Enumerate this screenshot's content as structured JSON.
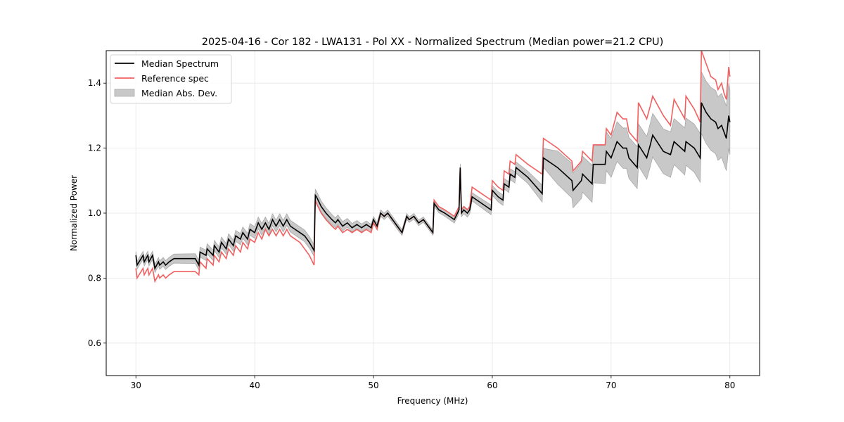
{
  "chart_data": {
    "type": "line",
    "title": "2025-04-16 - Cor 182 - LWA131 - Pol XX - Normalized Spectrum (Median power=21.2 CPU)",
    "xlabel": "Frequency (MHz)",
    "ylabel": "Normalized Power",
    "xlim": [
      27.5,
      82.5
    ],
    "ylim": [
      0.5,
      1.5
    ],
    "xticks": [
      30,
      40,
      50,
      60,
      70,
      80
    ],
    "xtick_labels": [
      "30",
      "40",
      "50",
      "60",
      "70",
      "80"
    ],
    "yticks": [
      0.6,
      0.8,
      1.0,
      1.2,
      1.4
    ],
    "ytick_labels": [
      "0.6",
      "0.8",
      "1.0",
      "1.2",
      "1.4"
    ],
    "grid": true,
    "legend": {
      "placement": "top-left",
      "entries": [
        {
          "label": "Median Spectrum",
          "kind": "line",
          "color": "#000000"
        },
        {
          "label": "Reference spec",
          "kind": "line",
          "color": "#f06060"
        },
        {
          "label": "Median Abs. Dev.",
          "kind": "patch",
          "color": "#c8c8c8"
        }
      ]
    },
    "series": [
      {
        "name": "Median Spectrum",
        "color": "#000000",
        "x": [
          30.0,
          30.1,
          30.6,
          30.7,
          31.0,
          31.1,
          31.4,
          31.6,
          31.9,
          32.0,
          32.3,
          32.5,
          32.8,
          33.2,
          33.5,
          34.0,
          34.5,
          35.0,
          35.3,
          35.4,
          35.9,
          36.0,
          36.5,
          36.6,
          37.0,
          37.2,
          37.6,
          37.8,
          38.2,
          38.4,
          38.8,
          39.0,
          39.4,
          39.6,
          40.0,
          40.3,
          40.6,
          40.9,
          41.2,
          41.5,
          41.8,
          42.1,
          42.4,
          42.7,
          43.0,
          43.4,
          43.8,
          44.2,
          44.6,
          45.0,
          45.1,
          45.2,
          45.6,
          46.0,
          46.5,
          46.8,
          47.0,
          47.4,
          47.8,
          48.2,
          48.6,
          49.0,
          49.4,
          49.8,
          50.0,
          50.3,
          50.6,
          50.9,
          51.2,
          51.6,
          52.0,
          52.4,
          52.8,
          53.0,
          53.4,
          53.8,
          54.2,
          54.6,
          55.0,
          55.1,
          55.5,
          56.0,
          56.4,
          56.8,
          57.2,
          57.3,
          57.4,
          57.6,
          57.9,
          58.1,
          58.3,
          58.7,
          59.1,
          59.5,
          59.9,
          60.0,
          60.5,
          60.9,
          61.0,
          61.4,
          61.5,
          61.9,
          62.0,
          63.0,
          64.2,
          64.3,
          65.5,
          66.7,
          66.8,
          67.5,
          67.6,
          68.4,
          68.5,
          69.5,
          69.6,
          70.0,
          70.5,
          71.0,
          71.3,
          71.5,
          72.2,
          72.3,
          73.0,
          73.3,
          73.5,
          74.4,
          75.0,
          75.3,
          75.6,
          76.2,
          76.3,
          77.0,
          77.5,
          77.6,
          78.0,
          78.4,
          78.8,
          79.0,
          79.3,
          79.5,
          79.7,
          79.9,
          80.0
        ],
        "values": [
          0.87,
          0.84,
          0.87,
          0.85,
          0.87,
          0.85,
          0.87,
          0.83,
          0.85,
          0.84,
          0.85,
          0.84,
          0.85,
          0.86,
          0.86,
          0.86,
          0.86,
          0.86,
          0.84,
          0.88,
          0.87,
          0.89,
          0.87,
          0.9,
          0.88,
          0.91,
          0.89,
          0.92,
          0.9,
          0.93,
          0.92,
          0.94,
          0.92,
          0.95,
          0.94,
          0.97,
          0.95,
          0.97,
          0.95,
          0.98,
          0.96,
          0.98,
          0.96,
          0.98,
          0.96,
          0.95,
          0.94,
          0.93,
          0.91,
          0.885,
          1.055,
          1.05,
          1.02,
          1.0,
          0.98,
          0.97,
          0.98,
          0.96,
          0.97,
          0.955,
          0.965,
          0.955,
          0.965,
          0.955,
          0.98,
          0.96,
          1.0,
          0.99,
          1.0,
          0.98,
          0.96,
          0.94,
          0.99,
          0.98,
          0.99,
          0.97,
          0.98,
          0.96,
          0.94,
          1.03,
          1.01,
          1.0,
          0.99,
          0.98,
          1.01,
          1.14,
          1.0,
          1.01,
          1.0,
          1.01,
          1.05,
          1.04,
          1.03,
          1.02,
          1.01,
          1.07,
          1.05,
          1.04,
          1.09,
          1.08,
          1.12,
          1.11,
          1.14,
          1.11,
          1.06,
          1.17,
          1.14,
          1.1,
          1.07,
          1.1,
          1.12,
          1.09,
          1.15,
          1.15,
          1.19,
          1.17,
          1.22,
          1.2,
          1.2,
          1.17,
          1.14,
          1.21,
          1.17,
          1.21,
          1.24,
          1.19,
          1.18,
          1.22,
          1.21,
          1.19,
          1.22,
          1.2,
          1.17,
          1.34,
          1.31,
          1.29,
          1.28,
          1.26,
          1.27,
          1.25,
          1.23,
          1.3,
          1.28
        ]
      },
      {
        "name": "Reference spec",
        "color": "#f06060",
        "x": [
          30.0,
          30.1,
          30.6,
          30.7,
          31.0,
          31.1,
          31.4,
          31.6,
          31.9,
          32.0,
          32.3,
          32.5,
          32.8,
          33.2,
          33.5,
          34.0,
          34.5,
          35.0,
          35.3,
          35.4,
          35.9,
          36.0,
          36.5,
          36.6,
          37.0,
          37.2,
          37.6,
          37.8,
          38.2,
          38.4,
          38.8,
          39.0,
          39.4,
          39.6,
          40.0,
          40.3,
          40.6,
          40.9,
          41.2,
          41.5,
          41.8,
          42.1,
          42.4,
          42.7,
          43.0,
          43.4,
          43.8,
          44.2,
          44.6,
          45.0,
          45.1,
          45.2,
          45.6,
          46.0,
          46.5,
          46.8,
          47.0,
          47.4,
          47.8,
          48.2,
          48.6,
          49.0,
          49.4,
          49.8,
          50.0,
          50.3,
          50.6,
          50.9,
          51.2,
          51.6,
          52.0,
          52.4,
          52.8,
          53.0,
          53.4,
          53.8,
          54.2,
          54.6,
          55.0,
          55.1,
          55.5,
          56.0,
          56.4,
          56.8,
          57.2,
          57.3,
          57.4,
          57.6,
          57.9,
          58.1,
          58.3,
          58.7,
          59.1,
          59.5,
          59.9,
          60.0,
          60.5,
          60.9,
          61.0,
          61.4,
          61.5,
          61.9,
          62.0,
          63.0,
          64.2,
          64.3,
          65.5,
          66.7,
          66.8,
          67.5,
          67.6,
          68.4,
          68.5,
          69.5,
          69.6,
          70.0,
          70.5,
          71.0,
          71.3,
          71.5,
          72.2,
          72.3,
          73.0,
          73.3,
          73.5,
          74.4,
          75.0,
          75.3,
          75.6,
          76.2,
          76.3,
          77.0,
          77.5,
          77.6,
          78.0,
          78.4,
          78.8,
          79.0,
          79.3,
          79.5,
          79.7,
          79.9,
          80.0
        ],
        "values": [
          0.83,
          0.8,
          0.83,
          0.81,
          0.83,
          0.81,
          0.83,
          0.79,
          0.81,
          0.8,
          0.81,
          0.8,
          0.81,
          0.82,
          0.82,
          0.82,
          0.82,
          0.82,
          0.81,
          0.85,
          0.83,
          0.86,
          0.84,
          0.87,
          0.85,
          0.88,
          0.86,
          0.89,
          0.87,
          0.9,
          0.88,
          0.91,
          0.89,
          0.92,
          0.91,
          0.94,
          0.92,
          0.95,
          0.93,
          0.95,
          0.93,
          0.95,
          0.93,
          0.95,
          0.93,
          0.92,
          0.91,
          0.89,
          0.87,
          0.84,
          1.04,
          1.03,
          1.0,
          0.98,
          0.96,
          0.95,
          0.96,
          0.94,
          0.95,
          0.94,
          0.95,
          0.94,
          0.95,
          0.94,
          0.97,
          0.95,
          1.0,
          0.99,
          1.0,
          0.98,
          0.96,
          0.94,
          0.99,
          0.98,
          0.99,
          0.97,
          0.98,
          0.96,
          0.94,
          1.04,
          1.02,
          1.01,
          1.0,
          0.99,
          1.02,
          1.14,
          1.01,
          1.02,
          1.01,
          1.02,
          1.08,
          1.07,
          1.06,
          1.05,
          1.04,
          1.1,
          1.08,
          1.07,
          1.13,
          1.12,
          1.16,
          1.15,
          1.18,
          1.15,
          1.12,
          1.23,
          1.2,
          1.16,
          1.13,
          1.16,
          1.19,
          1.16,
          1.21,
          1.21,
          1.26,
          1.24,
          1.31,
          1.29,
          1.29,
          1.25,
          1.22,
          1.34,
          1.29,
          1.33,
          1.36,
          1.3,
          1.27,
          1.35,
          1.33,
          1.29,
          1.36,
          1.32,
          1.28,
          1.5,
          1.46,
          1.42,
          1.41,
          1.38,
          1.4,
          1.37,
          1.35,
          1.45,
          1.42
        ]
      }
    ],
    "mad_band": {
      "name": "Median Abs. Dev.",
      "color": "#c8c8c8",
      "note": "half-width of shaded band around Median Spectrum",
      "x": [
        30,
        40,
        45,
        50,
        55,
        60,
        64,
        65,
        70,
        75,
        77.5,
        77.6,
        80
      ],
      "half_width": [
        0.012,
        0.018,
        0.018,
        0.01,
        0.008,
        0.015,
        0.02,
        0.05,
        0.06,
        0.07,
        0.075,
        0.095,
        0.1
      ]
    }
  }
}
